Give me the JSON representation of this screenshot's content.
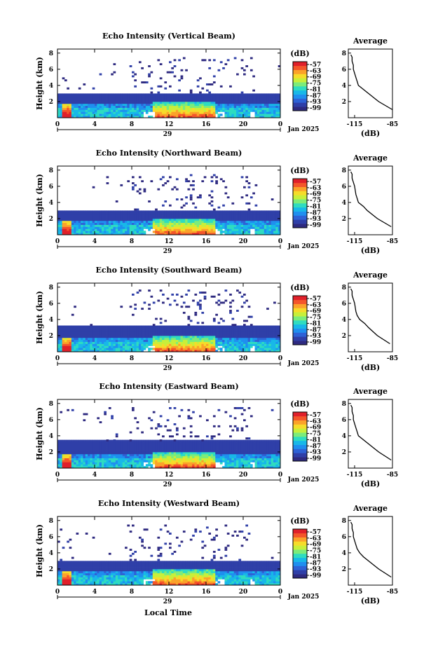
{
  "figure": {
    "time_label": "Local Time",
    "date_label": "Jan 2025",
    "day_label": "29",
    "colorbar_unit": "(dB)",
    "avg_xlabel": "(dB)",
    "colors": [
      "#2e2a80",
      "#2f3fa8",
      "#2e62d6",
      "#1f8fef",
      "#18b8e8",
      "#2fdcc0",
      "#7cec7a",
      "#c8ef3a",
      "#f6dc2a",
      "#fba22a",
      "#f4562a",
      "#e0202a"
    ]
  },
  "chart_data": [
    {
      "type": "heatmap",
      "title": "Echo Intensity (Vertical Beam)",
      "ylabel": "Height (km)",
      "xlabel": "Local Time",
      "x_ticks": [
        "0",
        "4",
        "8",
        "12",
        "16",
        "20",
        "0"
      ],
      "y_ticks": [
        "2",
        "4",
        "6",
        "8"
      ],
      "xlim": [
        0,
        24
      ],
      "ylim": [
        0,
        8.5
      ],
      "colorbar": {
        "unit": "(dB)",
        "ticks": [
          "-57",
          "-63",
          "-69",
          "-75",
          "-81",
          "-87",
          "-93",
          "-99"
        ],
        "range": [
          -99,
          -57
        ]
      },
      "layer_top_km": 3.0,
      "average": {
        "title": "Average",
        "xlabel": "(dB)",
        "x_ticks": [
          "-115",
          "-85"
        ],
        "xlim": [
          -120,
          -85
        ],
        "y_ticks": [
          "2",
          "4",
          "6",
          "8"
        ],
        "heights": [
          1.0,
          2.0,
          3.0,
          3.5,
          4.0,
          4.5,
          5.0,
          6.0,
          6.5,
          7.0,
          7.5,
          7.8
        ],
        "values": [
          -85,
          -96,
          -104,
          -108,
          -112,
          -113,
          -114,
          -116,
          -116,
          -117,
          -117,
          -118
        ]
      }
    },
    {
      "type": "heatmap",
      "title": "Echo Intensity (Northward Beam)",
      "ylabel": "Height (km)",
      "xlabel": "Local Time",
      "x_ticks": [
        "0",
        "4",
        "8",
        "12",
        "16",
        "20",
        "0"
      ],
      "y_ticks": [
        "2",
        "4",
        "6",
        "8"
      ],
      "xlim": [
        0,
        24
      ],
      "ylim": [
        0,
        8.5
      ],
      "colorbar": {
        "unit": "(dB)",
        "ticks": [
          "-57",
          "-63",
          "-69",
          "-75",
          "-81",
          "-87",
          "-93",
          "-99"
        ],
        "range": [
          -99,
          -57
        ]
      },
      "layer_top_km": 3.0,
      "average": {
        "title": "Average",
        "xlabel": "(dB)",
        "x_ticks": [
          "-115",
          "-85"
        ],
        "xlim": [
          -120,
          -85
        ],
        "y_ticks": [
          "2",
          "4",
          "6",
          "8"
        ],
        "heights": [
          1.0,
          2.0,
          3.0,
          3.5,
          4.0,
          4.5,
          5.0,
          6.0,
          6.5,
          7.0,
          7.5,
          7.8
        ],
        "values": [
          -86,
          -97,
          -105,
          -108,
          -112,
          -113,
          -114,
          -115,
          -116,
          -117,
          -117,
          -118
        ]
      }
    },
    {
      "type": "heatmap",
      "title": "Echo Intensity (Southward Beam)",
      "ylabel": "Height (km)",
      "xlabel": "Local Time",
      "x_ticks": [
        "0",
        "4",
        "8",
        "12",
        "16",
        "20",
        "0"
      ],
      "y_ticks": [
        "2",
        "4",
        "6",
        "8"
      ],
      "xlim": [
        0,
        24
      ],
      "ylim": [
        0,
        8.5
      ],
      "colorbar": {
        "unit": "(dB)",
        "ticks": [
          "-57",
          "-63",
          "-69",
          "-75",
          "-81",
          "-87",
          "-93",
          "-99"
        ],
        "range": [
          -99,
          -57
        ]
      },
      "layer_top_km": 3.2,
      "average": {
        "title": "Average",
        "xlabel": "(dB)",
        "x_ticks": [
          "-115",
          "-85"
        ],
        "xlim": [
          -120,
          -85
        ],
        "y_ticks": [
          "2",
          "4",
          "6",
          "8"
        ],
        "heights": [
          1.0,
          2.0,
          3.0,
          3.5,
          4.0,
          4.5,
          5.0,
          6.0,
          6.5,
          7.0,
          7.5,
          7.8
        ],
        "values": [
          -87,
          -97,
          -104,
          -107,
          -111,
          -113,
          -114,
          -115,
          -116,
          -117,
          -117,
          -118
        ]
      }
    },
    {
      "type": "heatmap",
      "title": "Echo Intensity (Eastward Beam)",
      "ylabel": "Height (km)",
      "xlabel": "Local Time",
      "x_ticks": [
        "0",
        "4",
        "8",
        "12",
        "16",
        "20",
        "0"
      ],
      "y_ticks": [
        "2",
        "4",
        "6",
        "8"
      ],
      "xlim": [
        0,
        24
      ],
      "ylim": [
        0,
        8.5
      ],
      "colorbar": {
        "unit": "(dB)",
        "ticks": [
          "-57",
          "-63",
          "-69",
          "-75",
          "-81",
          "-87",
          "-93",
          "-99"
        ],
        "range": [
          -99,
          -57
        ]
      },
      "layer_top_km": 3.3,
      "average": {
        "title": "Average",
        "xlabel": "(dB)",
        "x_ticks": [
          "-115",
          "-85"
        ],
        "xlim": [
          -120,
          -85
        ],
        "y_ticks": [
          "2",
          "4",
          "6",
          "8"
        ],
        "heights": [
          1.0,
          2.0,
          3.0,
          3.5,
          4.0,
          4.5,
          5.0,
          6.0,
          6.5,
          7.0,
          7.5,
          7.8
        ],
        "values": [
          -86,
          -96,
          -104,
          -108,
          -112,
          -113,
          -114,
          -116,
          -116,
          -117,
          -117,
          -118
        ]
      }
    },
    {
      "type": "heatmap",
      "title": "Echo Intensity (Westward Beam)",
      "ylabel": "Height (km)",
      "xlabel": "Local Time",
      "x_ticks": [
        "0",
        "4",
        "8",
        "12",
        "16",
        "20",
        "0"
      ],
      "y_ticks": [
        "2",
        "4",
        "6",
        "8"
      ],
      "xlim": [
        0,
        24
      ],
      "ylim": [
        0,
        8.5
      ],
      "colorbar": {
        "unit": "(dB)",
        "ticks": [
          "-57",
          "-63",
          "-69",
          "-75",
          "-81",
          "-87",
          "-93",
          "-99"
        ],
        "range": [
          -99,
          -57
        ]
      },
      "layer_top_km": 3.0,
      "average": {
        "title": "Average",
        "xlabel": "(dB)",
        "x_ticks": [
          "-115",
          "-85"
        ],
        "xlim": [
          -120,
          -85
        ],
        "y_ticks": [
          "2",
          "4",
          "6",
          "8"
        ],
        "heights": [
          1.0,
          2.0,
          3.0,
          3.5,
          4.0,
          4.5,
          5.0,
          6.0,
          6.5,
          7.0,
          7.5,
          7.8
        ],
        "values": [
          -86,
          -96,
          -104,
          -108,
          -111,
          -113,
          -114,
          -116,
          -116,
          -117,
          -117,
          -118
        ]
      }
    }
  ]
}
